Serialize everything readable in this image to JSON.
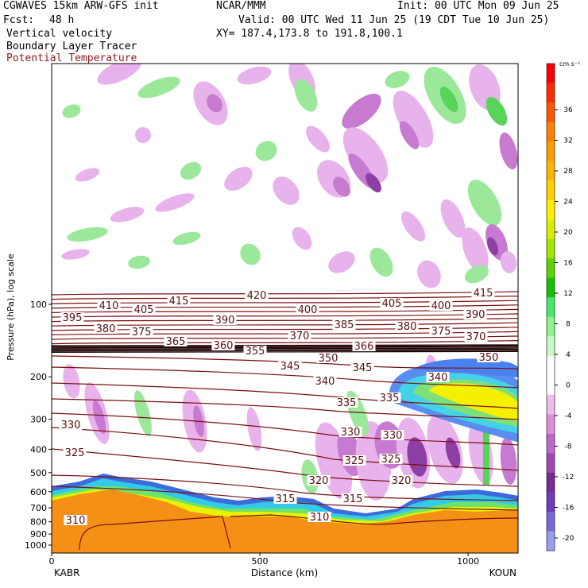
{
  "header": {
    "model": "CGWAVES 15km ARW-GFS init",
    "org": "NCAR/MMM",
    "init": "Init: 00 UTC Mon 09 Jun 25",
    "fcst_label": "Fcst:",
    "fcst_value": "48 h",
    "valid": "Valid: 00 UTC Wed 11 Jun 25 (19 CDT Tue 10 Jun 25)",
    "field1": "Vertical velocity",
    "field2": "Boundary Layer Tracer",
    "field3": "Potential Temperature",
    "xy": "XY= 187.4,173.8 to 191.8,100.1"
  },
  "chart_data": {
    "type": "heatmap",
    "title": "Vertical velocity",
    "xlabel": "Distance (km)",
    "ylabel": "Pressure (hPa), log scale",
    "x_ticks": [
      0,
      500,
      1000
    ],
    "x_range": [
      0,
      1120
    ],
    "y_ticks": [
      100,
      200,
      300,
      400,
      500,
      600,
      700,
      800,
      900,
      1000
    ],
    "y_scale": "log",
    "x_endpoints": {
      "left": "KABR",
      "right": "KOUN"
    },
    "colorbar": {
      "unit": "cm s⁻¹",
      "labels": [
        36,
        32,
        28,
        24,
        20,
        16,
        12,
        8,
        4,
        0,
        -4,
        -8,
        -12,
        -16,
        -20
      ],
      "colors": [
        "#ff0000",
        "#ff2a00",
        "#ff5500",
        "#ff7f00",
        "#ff9a00",
        "#ffb400",
        "#ffd000",
        "#ffee00",
        "#d8f000",
        "#a4e600",
        "#5cd400",
        "#16c000",
        "#49e86a",
        "#8df38f",
        "#c6fac6",
        "#ffffff",
        "#ffffff",
        "#eebbee",
        "#dd8fdd",
        "#c068c9",
        "#a046b0",
        "#7a2a96",
        "#6d3bc0",
        "#7a66df",
        "#9b9df0"
      ]
    },
    "theta_contours": {
      "name": "Potential Temperature",
      "labels": [
        {
          "text": "415",
          "x": 225,
          "y": 381
        },
        {
          "text": "420",
          "x": 323,
          "y": 374
        },
        {
          "text": "405",
          "x": 493,
          "y": 384
        },
        {
          "text": "415",
          "x": 608,
          "y": 371
        },
        {
          "text": "410",
          "x": 137,
          "y": 387
        },
        {
          "text": "405",
          "x": 181,
          "y": 392
        },
        {
          "text": "400",
          "x": 387,
          "y": 392
        },
        {
          "text": "400",
          "x": 555,
          "y": 387
        },
        {
          "text": "395",
          "x": 91,
          "y": 402
        },
        {
          "text": "390",
          "x": 283,
          "y": 405
        },
        {
          "text": "390",
          "x": 598,
          "y": 398
        },
        {
          "text": "380",
          "x": 133,
          "y": 416
        },
        {
          "text": "375",
          "x": 178,
          "y": 420
        },
        {
          "text": "385",
          "x": 433,
          "y": 411
        },
        {
          "text": "380",
          "x": 512,
          "y": 413
        },
        {
          "text": "370",
          "x": 377,
          "y": 425
        },
        {
          "text": "375",
          "x": 555,
          "y": 419
        },
        {
          "text": "370",
          "x": 599,
          "y": 426
        },
        {
          "text": "365",
          "x": 221,
          "y": 432
        },
        {
          "text": "360",
          "x": 281,
          "y": 437
        },
        {
          "text": "355",
          "x": 321,
          "y": 444
        },
        {
          "text": "366",
          "x": 458,
          "y": 438
        },
        {
          "text": "350",
          "x": 413,
          "y": 453
        },
        {
          "text": "345",
          "x": 365,
          "y": 463
        },
        {
          "text": "345",
          "x": 456,
          "y": 465
        },
        {
          "text": "350",
          "x": 615,
          "y": 452
        },
        {
          "text": "340",
          "x": 409,
          "y": 482
        },
        {
          "text": "340",
          "x": 551,
          "y": 477
        },
        {
          "text": "335",
          "x": 436,
          "y": 509
        },
        {
          "text": "335",
          "x": 490,
          "y": 503
        },
        {
          "text": "330",
          "x": 89,
          "y": 537
        },
        {
          "text": "330",
          "x": 441,
          "y": 546
        },
        {
          "text": "330",
          "x": 494,
          "y": 550
        },
        {
          "text": "325",
          "x": 94,
          "y": 572
        },
        {
          "text": "325",
          "x": 446,
          "y": 582
        },
        {
          "text": "325",
          "x": 492,
          "y": 580
        },
        {
          "text": "320",
          "x": 401,
          "y": 607
        },
        {
          "text": "320",
          "x": 505,
          "y": 607
        },
        {
          "text": "315",
          "x": 359,
          "y": 630
        },
        {
          "text": "315",
          "x": 444,
          "y": 630
        },
        {
          "text": "310",
          "x": 95,
          "y": 657
        },
        {
          "text": "310",
          "x": 402,
          "y": 653
        }
      ]
    }
  }
}
